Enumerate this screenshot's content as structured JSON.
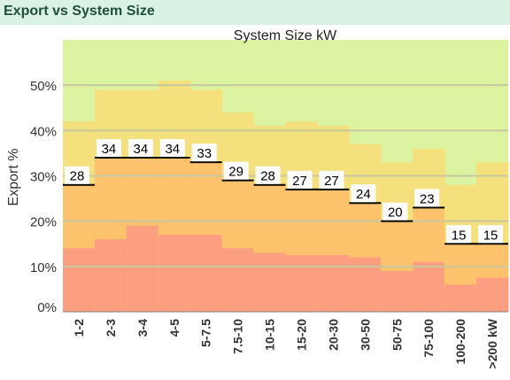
{
  "panel": {
    "title": "Export vs System Size"
  },
  "colors": {
    "band_top": "#dcf4a2",
    "band_high": "#f4e07c",
    "band_mid": "#fcc36c",
    "band_low": "#fc9e80",
    "grid": "#c7c7a0",
    "median_line": "#000000"
  },
  "chart_data": {
    "type": "area",
    "title": "System Size kW",
    "xlabel": "",
    "ylabel": "Export %",
    "categories": [
      "1-2",
      "2-3",
      "3-4",
      "4-5",
      "5-7.5",
      "7.5-10",
      "10-15",
      "15-20",
      "20-30",
      "30-50",
      "50-75",
      "75-100",
      "100-200",
      ">200 kW"
    ],
    "series": [
      {
        "values": [
          14,
          16,
          19,
          17,
          17,
          14,
          13,
          12.5,
          12.5,
          12,
          9,
          11,
          6,
          7.5
        ]
      },
      {
        "values": [
          42,
          49,
          49,
          51,
          49,
          44,
          41,
          42,
          41,
          37,
          33,
          36,
          28,
          33
        ]
      },
      {
        "values": [
          28,
          34,
          34,
          34,
          33,
          29,
          28,
          27,
          27,
          24,
          20,
          23,
          15,
          15
        ]
      }
    ],
    "data_labels": [
      "28",
      "34",
      "34",
      "34",
      "33",
      "29",
      "28",
      "27",
      "27",
      "24",
      "20",
      "23",
      "15",
      "15"
    ],
    "ylim": [
      0,
      60
    ],
    "yticks": [
      0,
      10,
      20,
      30,
      40,
      50
    ],
    "ytick_labels": [
      "0%",
      "10%",
      "20%",
      "30%",
      "40%",
      "50%"
    ],
    "grid": true,
    "legend": "none"
  }
}
